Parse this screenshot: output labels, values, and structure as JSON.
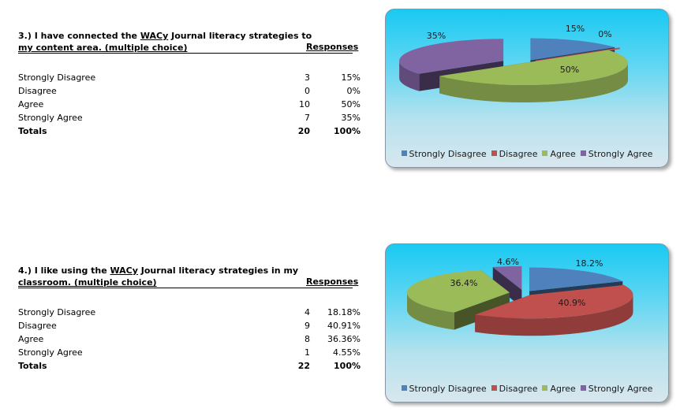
{
  "colors": {
    "strongly_disagree": "#4f81bd",
    "disagree": "#c0504d",
    "agree": "#9bbb59",
    "strongly_agree": "#8064a2"
  },
  "chart_data": [
    {
      "type": "pie",
      "question": "3.) I have connected the WACy Journal literacy strategies to my content area. (multiple choice)",
      "question_line1_a": "3.)  I have connected the ",
      "question_line1_u": "WACy",
      "question_line1_b": " Journal literacy strategies to",
      "question_line2": "my content area. (multiple choice)",
      "responses_header": "Responses",
      "categories": [
        "Strongly Disagree",
        "Disagree",
        "Agree",
        "Strongly Agree"
      ],
      "counts": [
        "3",
        "0",
        "10",
        "7"
      ],
      "percents": [
        "15%",
        "0%",
        "50%",
        "35%"
      ],
      "values": [
        15,
        0,
        50,
        35
      ],
      "slice_labels": [
        "15%",
        "0%",
        "50%",
        "35%"
      ],
      "totals_label": "Totals",
      "total_count": "20",
      "total_percent": "100%",
      "legend": "bottom"
    },
    {
      "type": "pie",
      "question": "4.) I like using the WACy Journal literacy strategies in my classroom. (multiple choice)",
      "question_line1_a": "4.)  I like using the ",
      "question_line1_u": "WACy",
      "question_line1_b": " Journal literacy strategies in my",
      "question_line2": "classroom.  (multiple choice)",
      "responses_header": "Responses",
      "categories": [
        "Strongly Disagree",
        "Disagree",
        "Agree",
        "Strongly Agree"
      ],
      "counts": [
        "4",
        "9",
        "8",
        "1"
      ],
      "percents": [
        "18.18%",
        "40.91%",
        "36.36%",
        "4.55%"
      ],
      "values": [
        18.18,
        40.91,
        36.36,
        4.55
      ],
      "slice_labels": [
        "18.2%",
        "40.9%",
        "36.4%",
        "4.6%"
      ],
      "totals_label": "Totals",
      "total_count": "22",
      "total_percent": "100%",
      "legend": "bottom"
    }
  ]
}
